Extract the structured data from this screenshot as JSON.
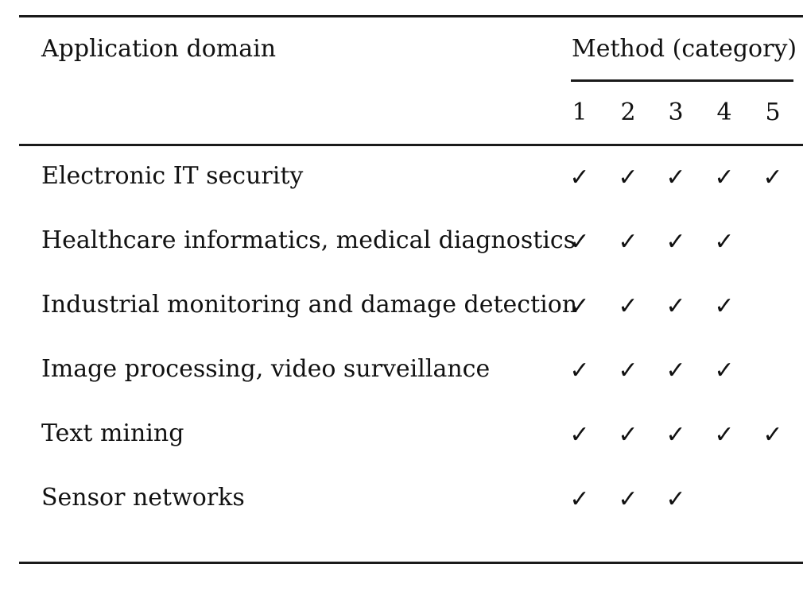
{
  "header": {
    "domain_label": "Application domain",
    "method_label": "Method (category)",
    "categories": [
      "1",
      "2",
      "3",
      "4",
      "5"
    ]
  },
  "check_glyph": "✓",
  "rows": [
    {
      "domain": "Electronic IT security",
      "checks": [
        true,
        true,
        true,
        true,
        true
      ]
    },
    {
      "domain": "Healthcare informatics, medical diagnostics",
      "checks": [
        true,
        true,
        true,
        true,
        false
      ]
    },
    {
      "domain": "Industrial monitoring and damage detection",
      "checks": [
        true,
        true,
        true,
        true,
        false
      ]
    },
    {
      "domain": "Image processing, video surveillance",
      "checks": [
        true,
        true,
        true,
        true,
        false
      ]
    },
    {
      "domain": "Text mining",
      "checks": [
        true,
        true,
        true,
        true,
        true
      ]
    },
    {
      "domain": "Sensor networks",
      "checks": [
        true,
        true,
        true,
        false,
        false
      ]
    }
  ]
}
